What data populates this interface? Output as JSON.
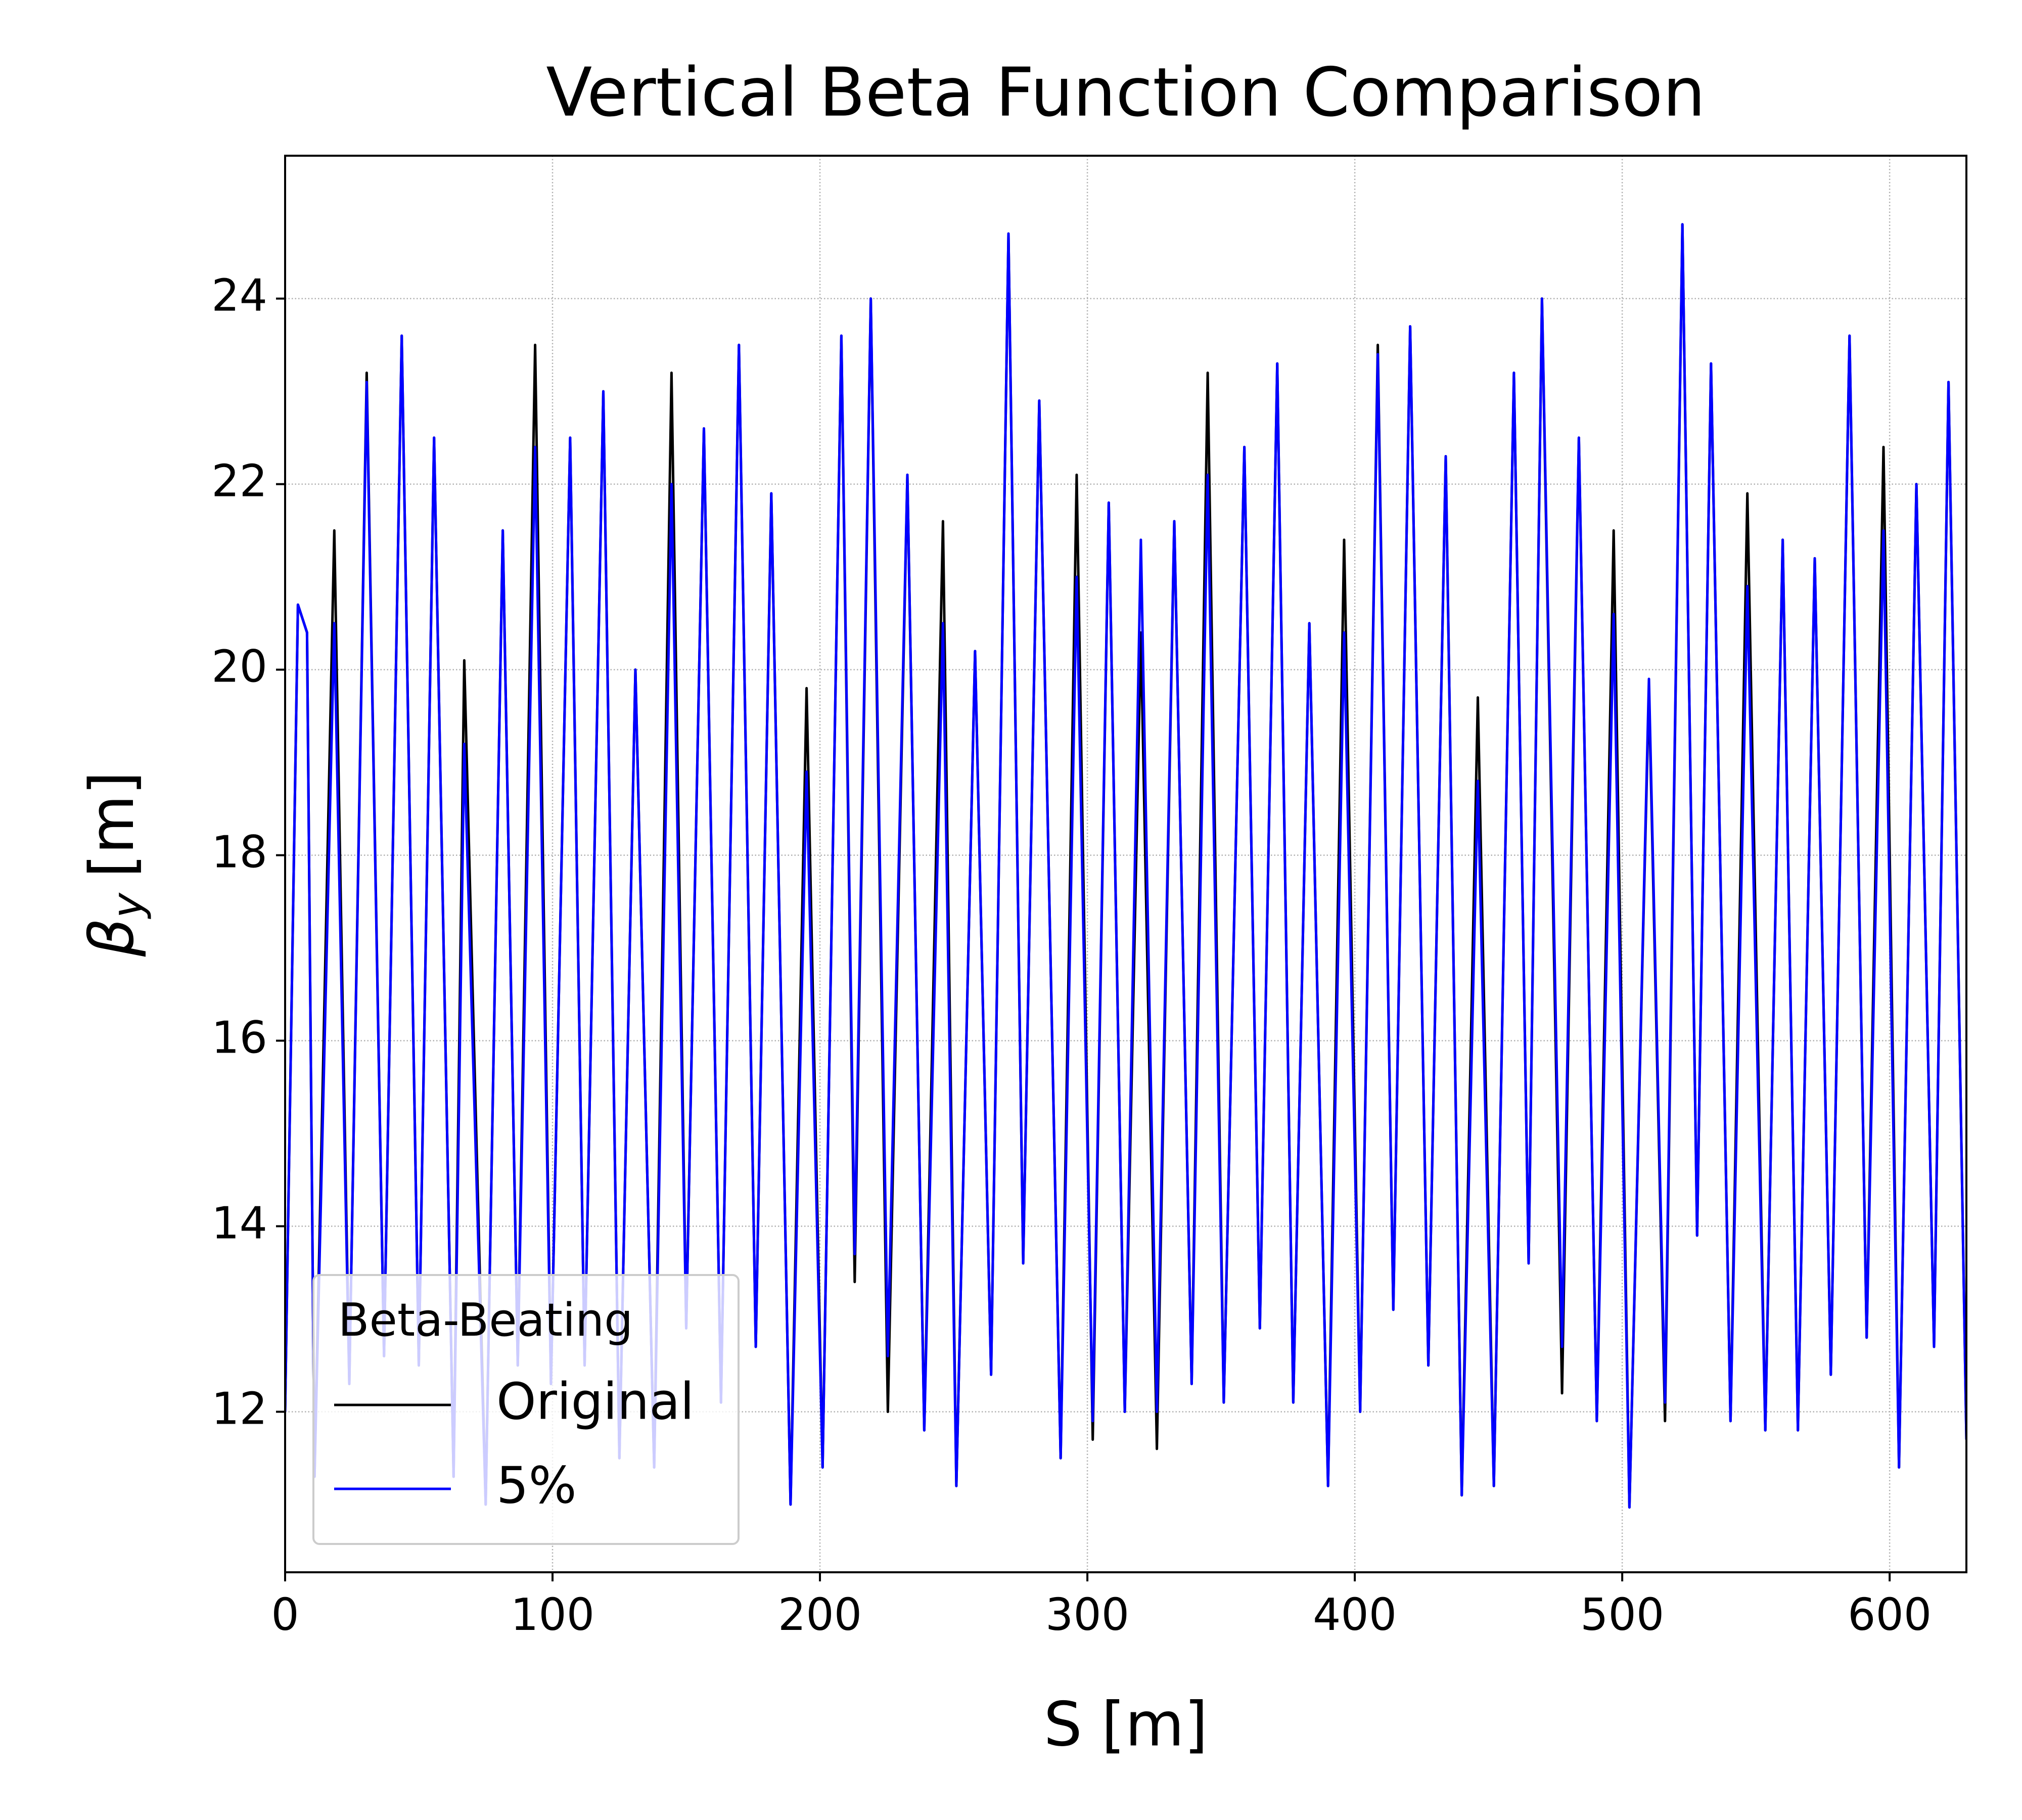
{
  "chart_data": {
    "type": "line",
    "title": "Vertical Beta Function Comparison",
    "xlabel": "S [m]",
    "ylabel": [
      "β",
      "y",
      "[m]"
    ],
    "x": [
      0,
      4.8,
      8.2,
      11,
      18.4,
      24,
      30.5,
      37,
      43.6,
      50,
      55.7,
      63,
      67,
      75,
      81.4,
      87,
      93.5,
      99.4,
      106.6,
      112,
      119,
      125,
      131,
      138,
      144.5,
      150,
      156.6,
      163,
      169.7,
      176,
      181.8,
      189,
      195,
      201,
      208,
      213,
      219,
      225.4,
      232.7,
      239,
      246,
      251,
      258,
      264,
      270.5,
      276,
      282,
      290,
      296,
      302,
      308,
      314,
      320,
      326,
      332.5,
      339,
      345,
      351,
      358.7,
      364.5,
      371,
      377,
      383,
      390,
      396,
      402,
      408.6,
      414.4,
      420.7,
      427.5,
      434,
      440,
      446,
      452,
      459.5,
      465,
      470,
      477.5,
      483.8,
      490.5,
      496.8,
      502.7,
      510,
      516,
      522.5,
      528,
      533.2,
      540.5,
      546.8,
      553.5,
      560,
      565.7,
      572,
      578,
      585,
      591.4,
      597.7,
      603.5,
      610,
      616.6,
      622,
      628.7
    ],
    "series": [
      {
        "name": "Original",
        "color": "#000000",
        "values": [
          12,
          20.7,
          20.4,
          11.3,
          21.5,
          12.3,
          23.2,
          12.6,
          23.6,
          12.5,
          22.5,
          11.3,
          20.1,
          11,
          21.5,
          12.5,
          23.5,
          12.3,
          22.5,
          12.5,
          23,
          11.5,
          20,
          11.4,
          23.2,
          12.9,
          22.6,
          12.1,
          23.5,
          12.7,
          21.9,
          11,
          19.8,
          11.4,
          23.6,
          13.4,
          24,
          12,
          22.1,
          11.8,
          21.6,
          11.2,
          20.2,
          12.4,
          24.7,
          13.6,
          22.9,
          11.5,
          22.1,
          11.7,
          21.8,
          12,
          20.4,
          11.6,
          21.6,
          12.3,
          23.2,
          12.1,
          22.4,
          12.9,
          23.3,
          12.1,
          20.5,
          11.2,
          21.4,
          12,
          23.5,
          13.1,
          23.7,
          12.5,
          22.3,
          11.1,
          19.7,
          11.2,
          23.2,
          13.6,
          24,
          12.2,
          22.5,
          11.9,
          21.5,
          10.97,
          19.8,
          11.9,
          24.8,
          13.9,
          23.3,
          11.9,
          21.9,
          11.8,
          21.4,
          11.8,
          21.2,
          12.4,
          23.6,
          12.8,
          22.4,
          11.4,
          22,
          12.7,
          23.1,
          11.7
        ]
      },
      {
        "name": "5%",
        "color": "#0000ff",
        "values": [
          12,
          20.7,
          20.4,
          11.3,
          20.5,
          12.3,
          23.1,
          12.6,
          23.6,
          12.5,
          22.5,
          11.3,
          19.2,
          11,
          21.5,
          12.5,
          22.4,
          12.3,
          22.5,
          12.5,
          23,
          11.5,
          20,
          11.4,
          22,
          12.9,
          22.6,
          12.1,
          23.5,
          12.7,
          21.9,
          11,
          18.9,
          11.4,
          23.6,
          13.7,
          24,
          12.6,
          22.1,
          11.8,
          20.5,
          11.2,
          20.2,
          12.4,
          24.7,
          13.6,
          22.9,
          11.5,
          21,
          11.9,
          21.8,
          12,
          21.4,
          12,
          21.6,
          12.3,
          22.1,
          12.1,
          22.4,
          12.9,
          23.3,
          12.1,
          20.5,
          11.2,
          20.4,
          12,
          23.4,
          13.1,
          23.7,
          12.5,
          22.3,
          11.1,
          18.8,
          11.2,
          23.2,
          13.6,
          24,
          12.7,
          22.5,
          11.9,
          20.6,
          10.97,
          19.9,
          12.1,
          24.8,
          13.9,
          23.3,
          11.9,
          20.9,
          11.8,
          21.4,
          11.8,
          21.2,
          12.4,
          23.6,
          12.8,
          21.5,
          11.4,
          22,
          12.7,
          23.1,
          11.7
        ]
      }
    ],
    "xlim": [
      0,
      628.7
    ],
    "xticks": [
      0,
      100,
      200,
      300,
      400,
      500,
      600
    ],
    "ylim": [
      10.27,
      25.54
    ],
    "yticks": [
      12,
      14,
      16,
      18,
      20,
      22,
      24
    ],
    "grid": true,
    "legend_title": "Beta-Beating",
    "legend_position": "lower left"
  }
}
